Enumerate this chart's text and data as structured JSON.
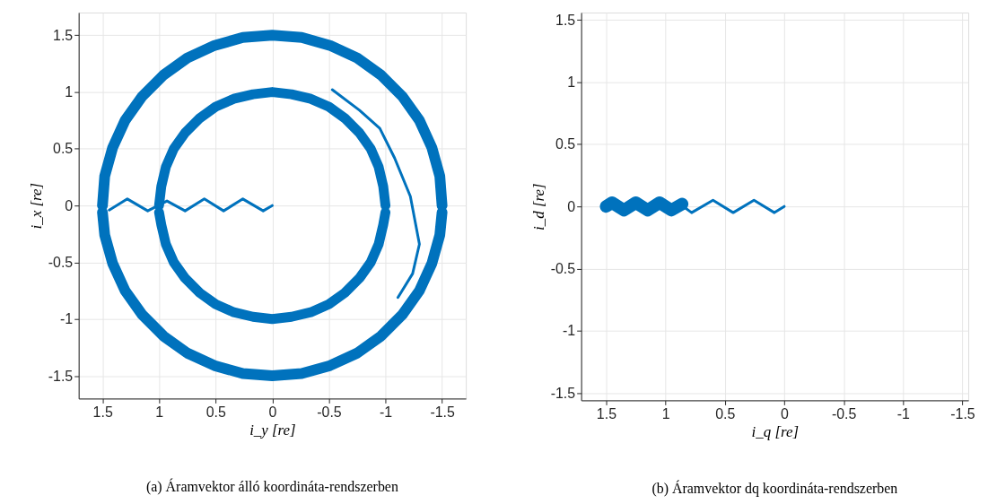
{
  "chart_data": [
    {
      "type": "line",
      "title": "(a) Áramvektor álló koordináta-rendszerben",
      "xlabel": "i_y [re]",
      "ylabel": "i_x [re]",
      "xlim": [
        1.71,
        -1.71
      ],
      "ylim": [
        -1.7,
        1.7
      ],
      "xticks": [
        1.5,
        1,
        0.5,
        0,
        -0.5,
        -1,
        -1.5
      ],
      "yticks": [
        -1.5,
        -1,
        -0.5,
        0,
        0.5,
        1,
        1.5
      ],
      "grid": true,
      "marker": "none",
      "line_style": "solid",
      "series": [
        {
          "color": "#0072bd",
          "x": [
            1.5,
            1.48,
            1.41,
            1.3,
            1.15,
            0.96,
            0.75,
            0.51,
            0.26,
            0,
            -0.26,
            -0.51,
            -0.75,
            -0.96,
            -1.15,
            -1.3,
            -1.41,
            -1.48,
            -1.5
          ],
          "values": [
            0,
            0.26,
            0.51,
            0.75,
            0.96,
            1.15,
            1.3,
            1.41,
            1.48,
            1.5,
            1.48,
            1.41,
            1.3,
            1.15,
            0.96,
            0.75,
            0.51,
            0.26,
            0
          ]
        },
        {
          "color": "#0072bd",
          "x": [
            -1.5,
            -1.48,
            -1.41,
            -1.3,
            -1.15,
            -0.96,
            -0.75,
            -0.51,
            -0.26,
            0,
            0.26,
            0.51,
            0.75,
            0.96,
            1.15,
            1.3,
            1.41,
            1.48,
            1.5
          ],
          "values": [
            -0.06,
            -0.26,
            -0.51,
            -0.75,
            -0.96,
            -1.15,
            -1.3,
            -1.41,
            -1.48,
            -1.5,
            -1.48,
            -1.41,
            -1.3,
            -1.15,
            -0.96,
            -0.75,
            -0.51,
            -0.26,
            -0.06
          ]
        },
        {
          "color": "#0072bd",
          "x": [
            1,
            0.98,
            0.94,
            0.87,
            0.77,
            0.64,
            0.5,
            0.34,
            0.17,
            0,
            -0.17,
            -0.34,
            -0.5,
            -0.64,
            -0.77,
            -0.87,
            -0.94,
            -0.98,
            -1
          ],
          "values": [
            0,
            0.17,
            0.34,
            0.5,
            0.64,
            0.77,
            0.87,
            0.94,
            0.98,
            1,
            0.98,
            0.94,
            0.87,
            0.77,
            0.64,
            0.5,
            0.34,
            0.17,
            0
          ]
        },
        {
          "color": "#0072bd",
          "x": [
            -1,
            -0.98,
            -0.94,
            -0.87,
            -0.77,
            -0.64,
            -0.5,
            -0.34,
            -0.17,
            0,
            0.17,
            0.34,
            0.5,
            0.64,
            0.77,
            0.87,
            0.94,
            0.98,
            1
          ],
          "values": [
            -0.06,
            -0.17,
            -0.34,
            -0.5,
            -0.64,
            -0.77,
            -0.87,
            -0.94,
            -0.98,
            -1,
            -0.98,
            -0.94,
            -0.87,
            -0.77,
            -0.64,
            -0.5,
            -0.34,
            -0.17,
            -0.06
          ]
        },
        {
          "color": "#0072bd",
          "x": [
            0,
            0.08,
            0.26,
            0.43,
            0.6,
            0.77,
            0.93,
            1.1,
            1.28,
            1.44
          ],
          "values": [
            0,
            -0.047,
            0.058,
            -0.047,
            0.058,
            -0.047,
            0.04,
            -0.047,
            0.058,
            -0.04
          ]
        },
        {
          "color": "#0072bd",
          "x": [
            -0.53,
            -0.77,
            -0.95,
            -1.08,
            -1.22,
            -1.3,
            -1.24,
            -1.11
          ],
          "values": [
            1.02,
            0.84,
            0.68,
            0.42,
            0.08,
            -0.34,
            -0.6,
            -0.81
          ]
        }
      ]
    },
    {
      "type": "line",
      "title": "(b) Áramvektor dq koordináta-rendszerben",
      "xlabel": "i_q [re]",
      "ylabel": "i_d [re]",
      "xlim": [
        1.71,
        -1.55
      ],
      "ylim": [
        -1.56,
        1.56
      ],
      "xticks": [
        1.5,
        1,
        0.5,
        0,
        -0.5,
        -1,
        -1.5
      ],
      "yticks": [
        -1.5,
        -1,
        -0.5,
        0,
        0.5,
        1,
        1.5
      ],
      "grid": true,
      "marker": "none",
      "line_style": "solid",
      "series": [
        {
          "color": "#0072bd",
          "x": [
            0.86,
            0.95,
            1.05,
            1.15,
            1.25,
            1.35,
            1.45,
            1.5
          ],
          "values": [
            0.02,
            -0.03,
            0.03,
            -0.03,
            0.03,
            -0.03,
            0.03,
            0
          ]
        },
        {
          "color": "#0072bd",
          "x": [
            0,
            0.083,
            0.255,
            0.43,
            0.6,
            0.78,
            0.85
          ],
          "values": [
            0,
            -0.05,
            0.05,
            -0.05,
            0.05,
            -0.05,
            0
          ]
        }
      ]
    }
  ]
}
